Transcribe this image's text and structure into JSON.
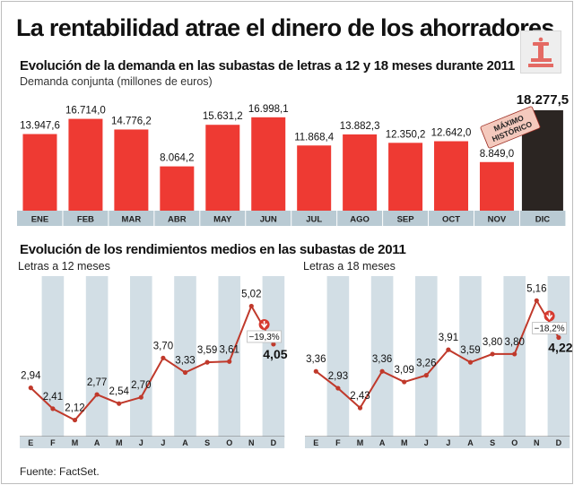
{
  "title": "La rentabilidad atrae el dinero de los ahorradores",
  "logo_icon": "newspaper-logo-icon",
  "source": "Fuente: FactSet.",
  "colors": {
    "bar": "#ee3a33",
    "highlight": "#2b2522",
    "axis": "#b9cad3",
    "line": "#c0392b",
    "stripe": "#d2dee5",
    "badge": "#f4c9bd"
  },
  "chart_data": [
    {
      "type": "bar",
      "title": "Evolución de la demanda en las subastas de letras a 12 y 18 meses durante 2011",
      "ylabel": "Demanda conjunta (millones de euros)",
      "categories": [
        "ENE",
        "FEB",
        "MAR",
        "ABR",
        "MAY",
        "JUN",
        "JUL",
        "AGO",
        "SEP",
        "OCT",
        "NOV",
        "DIC"
      ],
      "values": [
        13947.6,
        16714.0,
        14776.2,
        8064.2,
        15631.2,
        16998.1,
        11868.4,
        13882.3,
        12350.2,
        12642.0,
        8849.0,
        18277.5
      ],
      "labels": [
        "13.947,6",
        "16.714,0",
        "14.776,2",
        "8.064,2",
        "15.631,2",
        "16.998,1",
        "11.868,4",
        "13.882,3",
        "12.350,2",
        "12.642,0",
        "8.849,0",
        "18.277,5"
      ],
      "annotation": "MÁXIMO HISTÓRICO",
      "ylim": [
        0,
        18277.5
      ]
    },
    {
      "type": "line",
      "title": "Evolución de los rendimientos medios en las subastas de 2011",
      "series_label": "Letras a 12 meses",
      "categories": [
        "E",
        "F",
        "M",
        "A",
        "M",
        "J",
        "J",
        "A",
        "S",
        "O",
        "N",
        "D"
      ],
      "values": [
        2.94,
        2.41,
        2.12,
        2.77,
        2.54,
        2.7,
        3.7,
        3.33,
        3.59,
        3.61,
        5.02,
        4.05
      ],
      "labels": [
        "2,94",
        "2,41",
        "2,12",
        "2,77",
        "2,54",
        "2,70",
        "3,70",
        "3,33",
        "3,59",
        "3,61",
        "5,02",
        "4,05"
      ],
      "change": "−19,3%",
      "ylim": [
        1.7,
        5.6
      ]
    },
    {
      "type": "line",
      "title": "Evolución de los rendimientos medios en las subastas de 2011",
      "series_label": "Letras a 18 meses",
      "categories": [
        "E",
        "F",
        "M",
        "A",
        "M",
        "J",
        "J",
        "A",
        "S",
        "O",
        "N",
        "D"
      ],
      "values": [
        3.36,
        2.93,
        2.43,
        3.36,
        3.09,
        3.26,
        3.91,
        3.59,
        3.8,
        3.8,
        5.16,
        4.22
      ],
      "labels": [
        "3,36",
        "2,93",
        "2,43",
        "3,36",
        "3,09",
        "3,26",
        "3,91",
        "3,59",
        "3,80",
        "3,80",
        "5,16",
        "4,22"
      ],
      "change": "−18,2%",
      "ylim": [
        1.7,
        5.6
      ]
    }
  ]
}
